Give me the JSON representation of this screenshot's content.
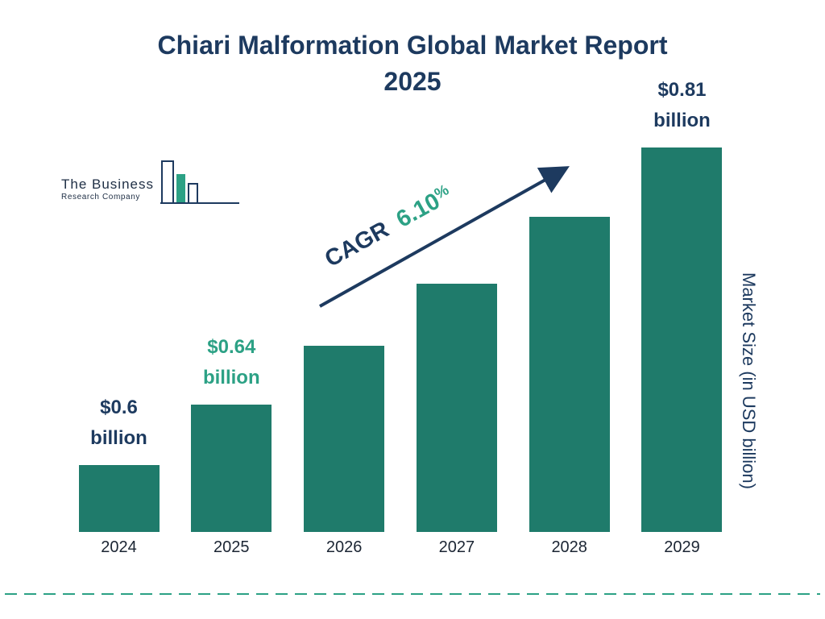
{
  "title": {
    "line1": "Chiari Malformation Global Market Report",
    "line2": "2025"
  },
  "logo": {
    "line1": "The Business",
    "line2": "Research Company"
  },
  "cagr": {
    "prefix": "CAGR",
    "value": "6.10",
    "percent": "%"
  },
  "colors": {
    "navy": "#1d3a5f",
    "bar_teal": "#1f7b6b",
    "accent_teal": "#2ca185"
  },
  "chart_data": {
    "type": "bar",
    "title": "Chiari Malformation Global Market Report 2025",
    "categories": [
      "2024",
      "2025",
      "2026",
      "2027",
      "2028",
      "2029"
    ],
    "values": [
      0.6,
      0.64,
      0.679,
      0.72,
      0.764,
      0.81
    ],
    "bar_labels": [
      {
        "applies_to": "2024",
        "line1": "$0.6",
        "line2": "billion",
        "color": "navy"
      },
      {
        "applies_to": "2025",
        "line1": "$0.64",
        "line2": "billion",
        "color": "teal"
      },
      {
        "applies_to": "2029",
        "line1": "$0.81",
        "line2": "billion",
        "color": "navy"
      }
    ],
    "annotation": "CAGR 6.10%",
    "xlabel": "",
    "ylabel": "Market Size (in USD billion)",
    "ylim": [
      0.55,
      0.82
    ],
    "grid": false,
    "legend": null
  }
}
